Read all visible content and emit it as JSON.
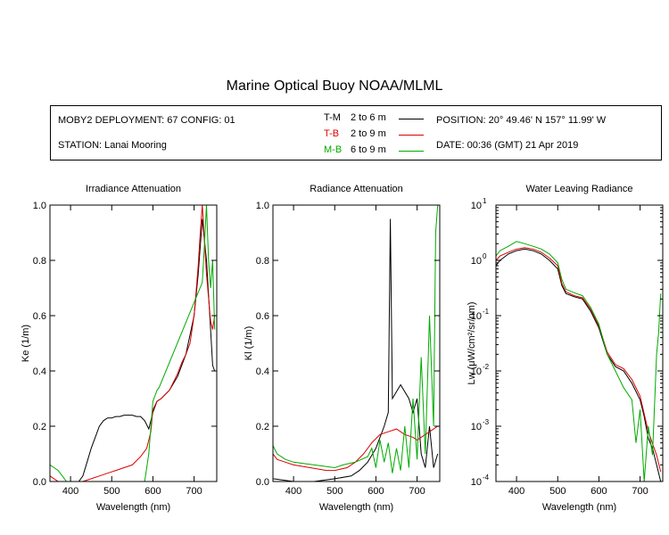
{
  "header": {
    "title": "Marine Optical Buoy NOAA/MLML",
    "deployment": "MOBY2 DEPLOYMENT: 67 CONFIG: 01",
    "station": "STATION: Lanai Mooring",
    "position": "POSITION: 20° 49.46' N   157° 11.99' W",
    "date": "DATE: 00:36 (GMT) 21 Apr 2019"
  },
  "legend": [
    {
      "code": "T-M",
      "range": "2 to 6   m",
      "color": "#000000"
    },
    {
      "code": "T-B",
      "range": "2 to 9   m",
      "color": "#dd0000"
    },
    {
      "code": "M-B",
      "range": "6 to 9   m",
      "color": "#00aa00"
    }
  ],
  "colors": {
    "T-M": "#000000",
    "T-B": "#dd0000",
    "M-B": "#00aa00"
  },
  "chart_data": [
    {
      "type": "line",
      "title": "Irradiance Attenuation",
      "xlabel": "Wavelength (nm)",
      "ylabel": "Ke  (1/m)",
      "xlim": [
        350,
        755
      ],
      "ylim": [
        0,
        1.0
      ],
      "xticks": [
        400,
        500,
        600,
        700
      ],
      "yticks": [
        0.0,
        0.2,
        0.4,
        0.6,
        0.8,
        1.0
      ],
      "ytick_labels": [
        "0.0",
        "0.2",
        "0.4",
        "0.6",
        "0.8",
        "1.0"
      ],
      "series": [
        {
          "key": "T-M",
          "points": [
            [
              420,
              0.0
            ],
            [
              430,
              0.02
            ],
            [
              440,
              0.07
            ],
            [
              450,
              0.12
            ],
            [
              460,
              0.16
            ],
            [
              470,
              0.2
            ],
            [
              480,
              0.22
            ],
            [
              490,
              0.23
            ],
            [
              500,
              0.23
            ],
            [
              510,
              0.235
            ],
            [
              520,
              0.235
            ],
            [
              530,
              0.24
            ],
            [
              540,
              0.24
            ],
            [
              550,
              0.24
            ],
            [
              560,
              0.235
            ],
            [
              570,
              0.235
            ],
            [
              580,
              0.22
            ],
            [
              590,
              0.19
            ],
            [
              600,
              0.25
            ],
            [
              610,
              0.29
            ],
            [
              620,
              0.3
            ],
            [
              640,
              0.33
            ],
            [
              660,
              0.38
            ],
            [
              680,
              0.46
            ],
            [
              700,
              0.6
            ],
            [
              710,
              0.75
            ],
            [
              720,
              0.95
            ],
            [
              730,
              0.8
            ],
            [
              740,
              0.55
            ],
            [
              745,
              0.42
            ],
            [
              750,
              0.4
            ]
          ]
        },
        {
          "key": "T-B",
          "points": [
            [
              350,
              0.02
            ],
            [
              360,
              0.01
            ],
            [
              370,
              0.0
            ],
            [
              400,
              0.0
            ],
            [
              430,
              0.0
            ],
            [
              450,
              0.01
            ],
            [
              470,
              0.02
            ],
            [
              490,
              0.03
            ],
            [
              510,
              0.04
            ],
            [
              530,
              0.05
            ],
            [
              550,
              0.06
            ],
            [
              570,
              0.09
            ],
            [
              585,
              0.12
            ],
            [
              595,
              0.18
            ],
            [
              600,
              0.26
            ],
            [
              610,
              0.29
            ],
            [
              620,
              0.3
            ],
            [
              640,
              0.33
            ],
            [
              660,
              0.39
            ],
            [
              670,
              0.43
            ],
            [
              680,
              0.46
            ],
            [
              690,
              0.5
            ],
            [
              700,
              0.6
            ],
            [
              710,
              0.78
            ],
            [
              715,
              0.9
            ],
            [
              720,
              1.0
            ],
            [
              730,
              0.75
            ],
            [
              740,
              0.58
            ],
            [
              745,
              0.55
            ],
            [
              750,
              0.6
            ]
          ]
        },
        {
          "key": "M-B",
          "points": [
            [
              350,
              0.06
            ],
            [
              360,
              0.05
            ],
            [
              370,
              0.04
            ],
            [
              380,
              0.02
            ],
            [
              390,
              0.0
            ],
            [
              580,
              0.0
            ],
            [
              590,
              0.1
            ],
            [
              600,
              0.29
            ],
            [
              605,
              0.31
            ],
            [
              610,
              0.33
            ],
            [
              615,
              0.34
            ],
            [
              720,
              0.72
            ],
            [
              725,
              0.85
            ],
            [
              730,
              1.0
            ],
            [
              735,
              0.8
            ],
            [
              740,
              0.7
            ],
            [
              745,
              0.8
            ],
            [
              750,
              0.55
            ]
          ]
        }
      ]
    },
    {
      "type": "line",
      "title": "Radiance Attenuation",
      "xlabel": "Wavelength (nm)",
      "ylabel": "Kl  (1/m)",
      "xlim": [
        350,
        755
      ],
      "ylim": [
        0,
        1.0
      ],
      "xticks": [
        400,
        500,
        600,
        700
      ],
      "yticks": [
        0.0,
        0.2,
        0.4,
        0.6,
        0.8,
        1.0
      ],
      "ytick_labels": [
        "0.0",
        "0.2",
        "0.4",
        "0.6",
        "0.8",
        "1.0"
      ],
      "series": [
        {
          "key": "T-M",
          "points": [
            [
              350,
              0.01
            ],
            [
              400,
              0.0
            ],
            [
              450,
              0.0
            ],
            [
              500,
              0.01
            ],
            [
              540,
              0.02
            ],
            [
              560,
              0.04
            ],
            [
              580,
              0.07
            ],
            [
              600,
              0.12
            ],
            [
              620,
              0.2
            ],
            [
              630,
              0.25
            ],
            [
              635,
              0.95
            ],
            [
              640,
              0.3
            ],
            [
              660,
              0.35
            ],
            [
              680,
              0.3
            ],
            [
              690,
              0.25
            ],
            [
              700,
              0.3
            ],
            [
              710,
              0.1
            ],
            [
              720,
              0.05
            ],
            [
              730,
              0.2
            ],
            [
              740,
              0.05
            ],
            [
              750,
              0.1
            ]
          ]
        },
        {
          "key": "T-B",
          "points": [
            [
              350,
              0.1
            ],
            [
              360,
              0.08
            ],
            [
              380,
              0.07
            ],
            [
              400,
              0.06
            ],
            [
              440,
              0.05
            ],
            [
              480,
              0.04
            ],
            [
              500,
              0.04
            ],
            [
              530,
              0.05
            ],
            [
              550,
              0.07
            ],
            [
              570,
              0.1
            ],
            [
              590,
              0.14
            ],
            [
              610,
              0.17
            ],
            [
              630,
              0.18
            ],
            [
              650,
              0.19
            ],
            [
              670,
              0.17
            ],
            [
              690,
              0.16
            ],
            [
              700,
              0.15
            ],
            [
              720,
              0.17
            ],
            [
              740,
              0.19
            ],
            [
              750,
              0.2
            ]
          ]
        },
        {
          "key": "M-B",
          "points": [
            [
              350,
              0.13
            ],
            [
              360,
              0.1
            ],
            [
              380,
              0.08
            ],
            [
              400,
              0.07
            ],
            [
              450,
              0.06
            ],
            [
              500,
              0.05
            ],
            [
              520,
              0.06
            ],
            [
              550,
              0.07
            ],
            [
              580,
              0.09
            ],
            [
              590,
              0.12
            ],
            [
              600,
              0.05
            ],
            [
              610,
              0.15
            ],
            [
              620,
              0.07
            ],
            [
              630,
              0.14
            ],
            [
              640,
              0.03
            ],
            [
              650,
              0.12
            ],
            [
              660,
              0.04
            ],
            [
              670,
              0.2
            ],
            [
              680,
              0.05
            ],
            [
              690,
              0.3
            ],
            [
              700,
              0.08
            ],
            [
              710,
              0.45
            ],
            [
              720,
              0.1
            ],
            [
              730,
              0.6
            ],
            [
              740,
              0.2
            ],
            [
              745,
              0.9
            ],
            [
              750,
              1.0
            ]
          ]
        }
      ]
    },
    {
      "type": "line",
      "title": "Water Leaving Radiance",
      "xlabel": "Wavelength (nm)",
      "ylabel": "Lw  (μW/cm²/sr/nm)",
      "xlim": [
        350,
        755
      ],
      "ylim": [
        0.0001,
        10
      ],
      "yscale": "log",
      "xticks": [
        400,
        500,
        600,
        700
      ],
      "yticks": [
        0.0001,
        0.001,
        0.01,
        0.1,
        1,
        10
      ],
      "ytick_base": "10",
      "ytick_exps": [
        "-4",
        "-3",
        "-2",
        "-1",
        "0",
        "1"
      ],
      "series": [
        {
          "key": "T-M",
          "points": [
            [
              350,
              0.8
            ],
            [
              360,
              1.0
            ],
            [
              380,
              1.3
            ],
            [
              400,
              1.5
            ],
            [
              420,
              1.6
            ],
            [
              440,
              1.5
            ],
            [
              460,
              1.3
            ],
            [
              480,
              1.0
            ],
            [
              500,
              0.7
            ],
            [
              510,
              0.35
            ],
            [
              520,
              0.25
            ],
            [
              540,
              0.22
            ],
            [
              560,
              0.2
            ],
            [
              580,
              0.12
            ],
            [
              600,
              0.06
            ],
            [
              620,
              0.02
            ],
            [
              640,
              0.012
            ],
            [
              660,
              0.01
            ],
            [
              680,
              0.006
            ],
            [
              700,
              0.003
            ],
            [
              710,
              0.0015
            ],
            [
              720,
              0.0006
            ],
            [
              730,
              0.0004
            ],
            [
              740,
              0.0002
            ],
            [
              750,
              0.0001
            ]
          ]
        },
        {
          "key": "T-B",
          "points": [
            [
              350,
              1.0
            ],
            [
              360,
              1.2
            ],
            [
              380,
              1.4
            ],
            [
              400,
              1.6
            ],
            [
              420,
              1.7
            ],
            [
              440,
              1.6
            ],
            [
              460,
              1.4
            ],
            [
              480,
              1.1
            ],
            [
              500,
              0.8
            ],
            [
              510,
              0.38
            ],
            [
              520,
              0.27
            ],
            [
              540,
              0.23
            ],
            [
              560,
              0.21
            ],
            [
              580,
              0.13
            ],
            [
              600,
              0.065
            ],
            [
              620,
              0.022
            ],
            [
              640,
              0.013
            ],
            [
              660,
              0.011
            ],
            [
              680,
              0.007
            ],
            [
              700,
              0.0035
            ],
            [
              720,
              0.0008
            ],
            [
              740,
              0.0003
            ],
            [
              750,
              0.00015
            ]
          ]
        },
        {
          "key": "M-B",
          "points": [
            [
              350,
              1.2
            ],
            [
              360,
              1.5
            ],
            [
              380,
              1.8
            ],
            [
              400,
              2.2
            ],
            [
              420,
              2.0
            ],
            [
              440,
              1.8
            ],
            [
              460,
              1.6
            ],
            [
              480,
              1.3
            ],
            [
              500,
              0.9
            ],
            [
              510,
              0.45
            ],
            [
              520,
              0.3
            ],
            [
              540,
              0.26
            ],
            [
              560,
              0.23
            ],
            [
              580,
              0.14
            ],
            [
              600,
              0.07
            ],
            [
              620,
              0.02
            ],
            [
              640,
              0.01
            ],
            [
              660,
              0.005
            ],
            [
              680,
              0.003
            ],
            [
              690,
              0.0005
            ],
            [
              700,
              0.002
            ],
            [
              710,
              0.0001
            ],
            [
              720,
              0.001
            ],
            [
              730,
              0.0003
            ],
            [
              740,
              0.02
            ],
            [
              745,
              0.05
            ],
            [
              750,
              0.25
            ]
          ]
        }
      ]
    }
  ]
}
